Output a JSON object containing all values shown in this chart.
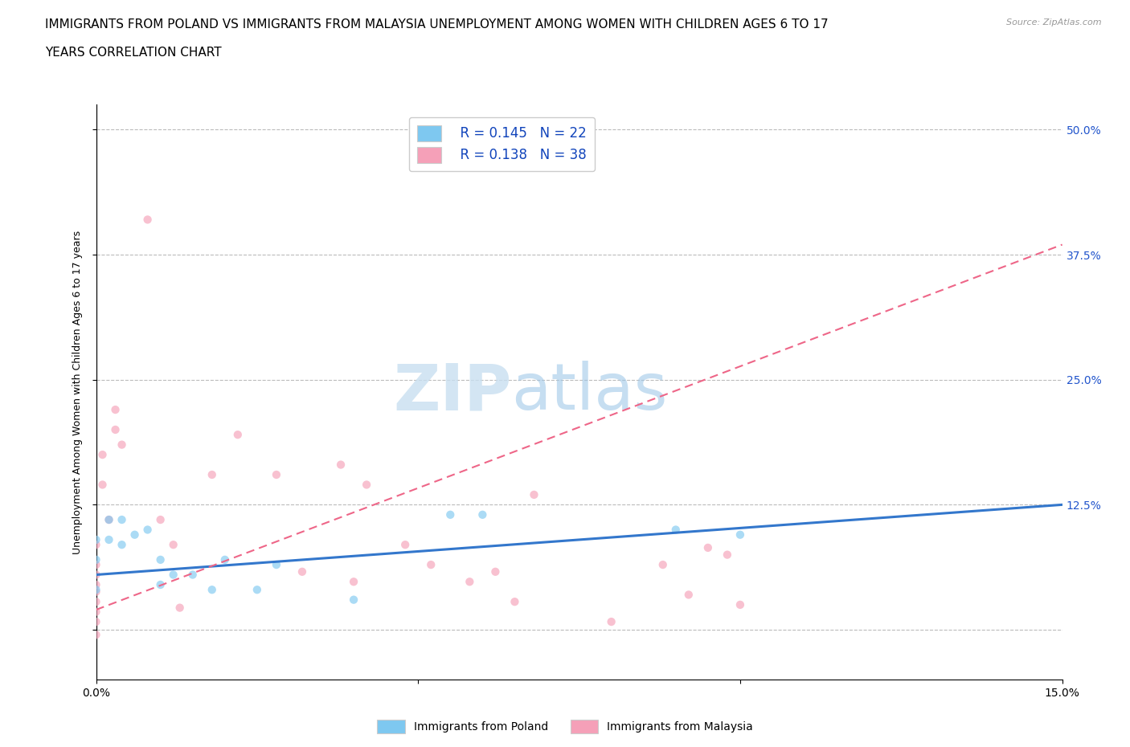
{
  "title_line1": "IMMIGRANTS FROM POLAND VS IMMIGRANTS FROM MALAYSIA UNEMPLOYMENT AMONG WOMEN WITH CHILDREN AGES 6 TO 17",
  "title_line2": "YEARS CORRELATION CHART",
  "source_text": "Source: ZipAtlas.com",
  "ylabel": "Unemployment Among Women with Children Ages 6 to 17 years",
  "xlim": [
    0.0,
    0.15
  ],
  "ylim": [
    -0.05,
    0.525
  ],
  "xticks": [
    0.0,
    0.05,
    0.1,
    0.15
  ],
  "xtick_labels": [
    "0.0%",
    "",
    "",
    "15.0%"
  ],
  "ytick_positions": [
    0.0,
    0.125,
    0.25,
    0.375,
    0.5
  ],
  "ytick_labels_right": [
    "",
    "12.5%",
    "25.0%",
    "37.5%",
    "50.0%"
  ],
  "poland_color": "#7ec8f0",
  "malaysia_color": "#f5a0b8",
  "poland_line_color": "#3377cc",
  "malaysia_line_color": "#ee6688",
  "watermark_zip": "ZIP",
  "watermark_atlas": "atlas",
  "legend_R_poland": "R = 0.145",
  "legend_N_poland": "N = 22",
  "legend_R_malaysia": "R = 0.138",
  "legend_N_malaysia": "N = 38",
  "poland_scatter_x": [
    0.0,
    0.0,
    0.0,
    0.002,
    0.002,
    0.004,
    0.004,
    0.006,
    0.008,
    0.01,
    0.01,
    0.012,
    0.015,
    0.018,
    0.02,
    0.025,
    0.028,
    0.04,
    0.055,
    0.06,
    0.09,
    0.1
  ],
  "poland_scatter_y": [
    0.09,
    0.07,
    0.04,
    0.11,
    0.09,
    0.11,
    0.085,
    0.095,
    0.1,
    0.07,
    0.045,
    0.055,
    0.055,
    0.04,
    0.07,
    0.04,
    0.065,
    0.03,
    0.115,
    0.115,
    0.1,
    0.095
  ],
  "malaysia_scatter_x": [
    0.0,
    0.0,
    0.0,
    0.0,
    0.0,
    0.0,
    0.0,
    0.0,
    0.0,
    0.001,
    0.001,
    0.002,
    0.003,
    0.003,
    0.004,
    0.008,
    0.01,
    0.012,
    0.013,
    0.018,
    0.022,
    0.028,
    0.032,
    0.038,
    0.04,
    0.042,
    0.048,
    0.052,
    0.058,
    0.062,
    0.065,
    0.068,
    0.08,
    0.088,
    0.092,
    0.095,
    0.098,
    0.1
  ],
  "malaysia_scatter_y": [
    0.085,
    0.065,
    0.055,
    0.045,
    0.038,
    0.028,
    0.018,
    0.008,
    -0.005,
    0.175,
    0.145,
    0.11,
    0.22,
    0.2,
    0.185,
    0.41,
    0.11,
    0.085,
    0.022,
    0.155,
    0.195,
    0.155,
    0.058,
    0.165,
    0.048,
    0.145,
    0.085,
    0.065,
    0.048,
    0.058,
    0.028,
    0.135,
    0.008,
    0.065,
    0.035,
    0.082,
    0.075,
    0.025
  ],
  "poland_trend_x": [
    0.0,
    0.15
  ],
  "poland_trend_y": [
    0.055,
    0.125
  ],
  "malaysia_trend_x": [
    0.0,
    0.15
  ],
  "malaysia_trend_y": [
    0.02,
    0.385
  ],
  "background_color": "#ffffff",
  "grid_color": "#bbbbbb",
  "title_fontsize": 11,
  "label_fontsize": 9,
  "tick_fontsize": 10,
  "scatter_size": 55,
  "scatter_alpha": 0.65,
  "legend_label_poland": "Immigrants from Poland",
  "legend_label_malaysia": "Immigrants from Malaysia"
}
